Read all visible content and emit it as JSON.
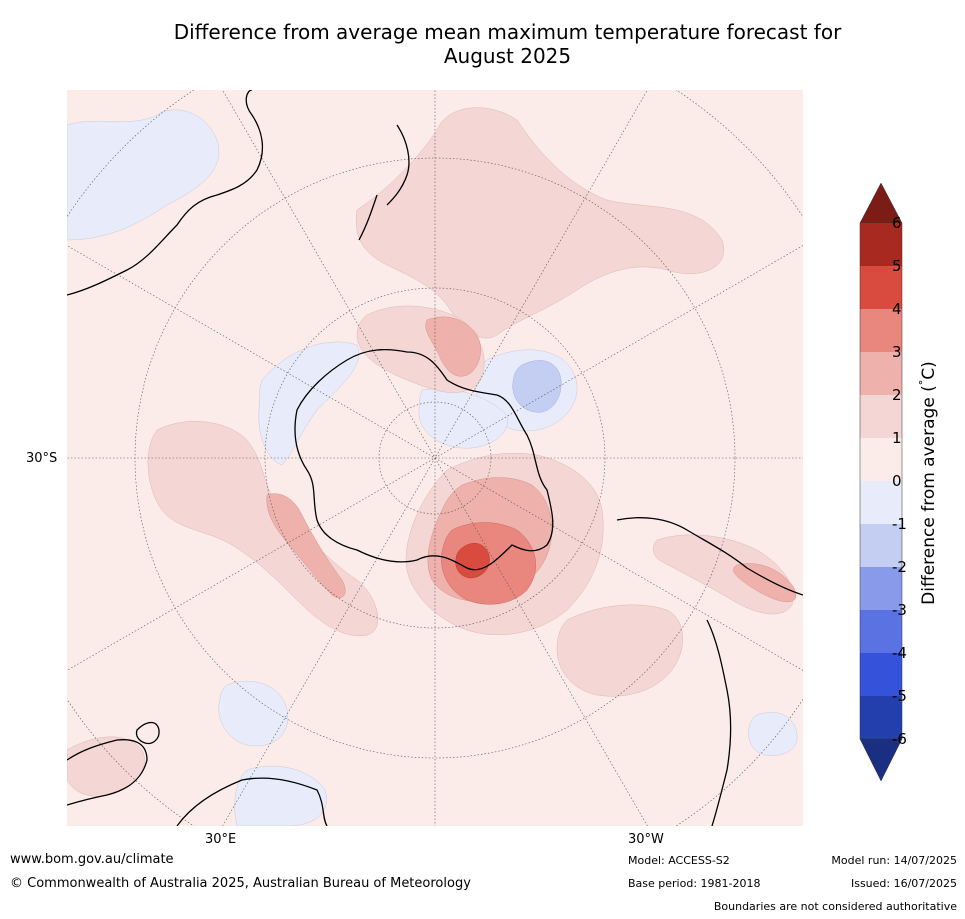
{
  "title": {
    "line1": "Difference from average mean maximum temperature forecast for",
    "line2": "August 2025"
  },
  "map": {
    "projection": "south-polar-stereographic",
    "latitude_label": "30°S",
    "longitude_labels": [
      "30°E",
      "30°W"
    ],
    "features": [
      "Antarctica coastline",
      "Australia",
      "New Zealand",
      "South America",
      "Africa",
      "Madagascar"
    ],
    "colors": {
      "near_average": "#fbecea",
      "warm_1_2": "#f4d6d4",
      "warm_2_3": "#eeb1ab",
      "warm_3_4": "#e9877e",
      "warm_4_5": "#d94b3e",
      "cool_0_-1": "#e8ecfa",
      "cool_-1_-2": "#c4cdf2"
    }
  },
  "colorbar": {
    "label": "Difference from average ($^\\circ$C)",
    "label_text": "Difference from average (",
    "label_degree": "°",
    "label_unit": "C)",
    "ticks": [
      "6",
      "5",
      "4",
      "3",
      "2",
      "1",
      "0",
      "-1",
      "-2",
      "-3",
      "-4",
      "-5",
      "-6"
    ],
    "colors": [
      "#7b1c17",
      "#a7291f",
      "#d94b3e",
      "#e9877e",
      "#eeb1ab",
      "#f4d6d4",
      "#fbecea",
      "#e8ecfa",
      "#c4cdf2",
      "#8a9aea",
      "#5a72e2",
      "#3452da",
      "#233fae",
      "#1a2e82"
    ]
  },
  "footer": {
    "website": "www.bom.gov.au/climate",
    "copyright": "© Commonwealth of Australia 2025, Australian Bureau of Meteorology",
    "model": "Model: ACCESS-S2",
    "model_run": "Model run: 14/07/2025",
    "base_period": "Base period: 1981-2018",
    "issued": "Issued: 16/07/2025",
    "disclaimer": "Boundaries are not considered authoritative"
  }
}
